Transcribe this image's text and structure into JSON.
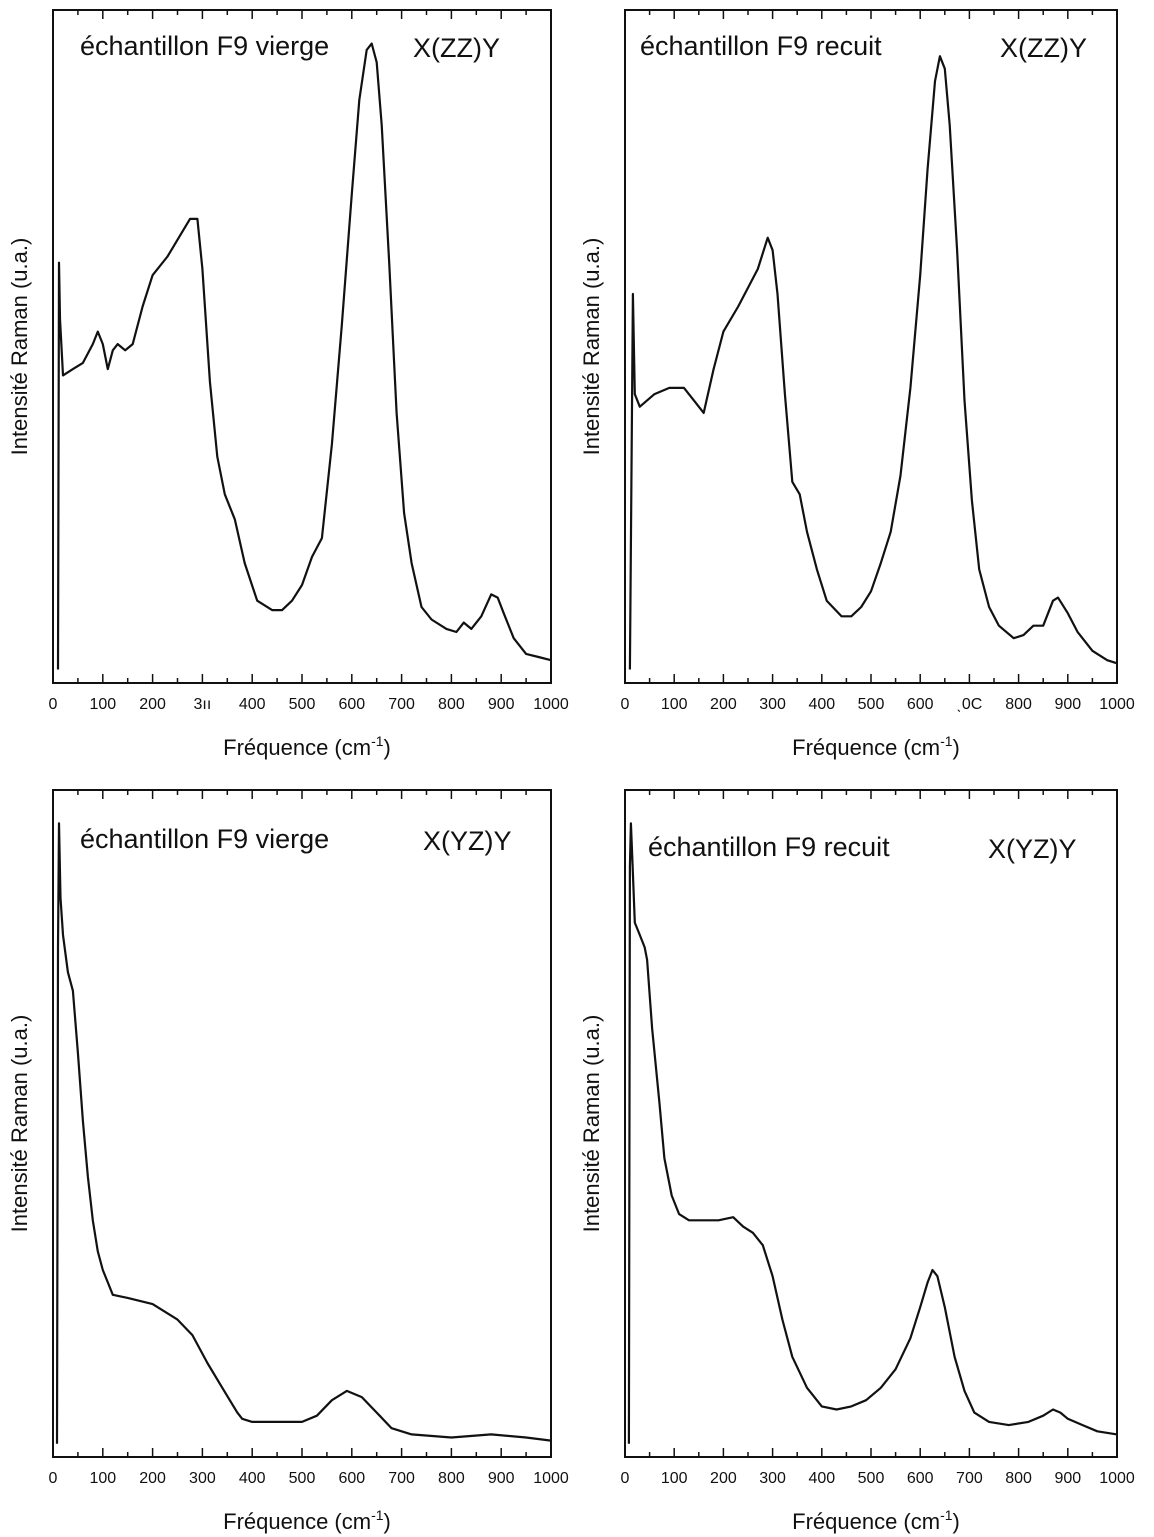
{
  "chart_data": [
    {
      "type": "line",
      "title": "échantillon F9 vierge",
      "polarization": "X(ZZ)Y",
      "xlabel": "Fréquence (cm",
      "xlabel_sup": "-1",
      "xlabel_close": ")",
      "ylabel": "Intensité Raman (u.a.)",
      "xlim": [
        0,
        1000
      ],
      "ylim": [
        0,
        1
      ],
      "x_tick_labels": [
        "0",
        "100",
        "200",
        "3ıı",
        "400",
        "500",
        "600",
        "700",
        "800",
        "900",
        "1000"
      ],
      "y_ticks_labeled": false,
      "grid": false,
      "series": [
        {
          "points": [
            [
              10,
              0.0
            ],
            [
              12,
              0.65
            ],
            [
              14,
              0.56
            ],
            [
              20,
              0.47
            ],
            [
              40,
              0.48
            ],
            [
              60,
              0.49
            ],
            [
              80,
              0.52
            ],
            [
              90,
              0.54
            ],
            [
              100,
              0.52
            ],
            [
              110,
              0.48
            ],
            [
              120,
              0.51
            ],
            [
              130,
              0.52
            ],
            [
              145,
              0.51
            ],
            [
              160,
              0.52
            ],
            [
              180,
              0.58
            ],
            [
              200,
              0.63
            ],
            [
              230,
              0.66
            ],
            [
              260,
              0.7
            ],
            [
              275,
              0.72
            ],
            [
              290,
              0.72
            ],
            [
              300,
              0.64
            ],
            [
              315,
              0.46
            ],
            [
              330,
              0.34
            ],
            [
              345,
              0.28
            ],
            [
              365,
              0.24
            ],
            [
              385,
              0.17
            ],
            [
              410,
              0.11
            ],
            [
              440,
              0.095
            ],
            [
              460,
              0.095
            ],
            [
              480,
              0.11
            ],
            [
              500,
              0.135
            ],
            [
              520,
              0.18
            ],
            [
              540,
              0.21
            ],
            [
              560,
              0.36
            ],
            [
              580,
              0.55
            ],
            [
              600,
              0.76
            ],
            [
              615,
              0.91
            ],
            [
              630,
              0.99
            ],
            [
              640,
              1.0
            ],
            [
              650,
              0.97
            ],
            [
              660,
              0.87
            ],
            [
              675,
              0.65
            ],
            [
              690,
              0.41
            ],
            [
              705,
              0.25
            ],
            [
              720,
              0.17
            ],
            [
              740,
              0.1
            ],
            [
              760,
              0.08
            ],
            [
              790,
              0.065
            ],
            [
              810,
              0.06
            ],
            [
              825,
              0.075
            ],
            [
              840,
              0.065
            ],
            [
              860,
              0.085
            ],
            [
              880,
              0.12
            ],
            [
              893,
              0.115
            ],
            [
              905,
              0.09
            ],
            [
              925,
              0.05
            ],
            [
              950,
              0.025
            ],
            [
              975,
              0.02
            ],
            [
              1000,
              0.015
            ]
          ]
        }
      ]
    },
    {
      "type": "line",
      "title": "échantillon F9 recuit",
      "polarization": "X(ZZ)Y",
      "xlabel": "Fréquence (cm",
      "xlabel_sup": "-1",
      "xlabel_close": ")",
      "ylabel": "Intensité Raman (u.a.)",
      "xlim": [
        0,
        1000
      ],
      "ylim": [
        0,
        1
      ],
      "x_tick_labels": [
        "0",
        "100",
        "200",
        "300",
        "400",
        "500",
        "600",
        "ˎ0С",
        "800",
        "900",
        "1000"
      ],
      "y_ticks_labeled": false,
      "grid": false,
      "series": [
        {
          "points": [
            [
              10,
              0.0
            ],
            [
              16,
              0.6
            ],
            [
              20,
              0.44
            ],
            [
              30,
              0.42
            ],
            [
              60,
              0.44
            ],
            [
              90,
              0.45
            ],
            [
              120,
              0.45
            ],
            [
              140,
              0.43
            ],
            [
              160,
              0.41
            ],
            [
              180,
              0.48
            ],
            [
              200,
              0.54
            ],
            [
              230,
              0.58
            ],
            [
              250,
              0.61
            ],
            [
              270,
              0.64
            ],
            [
              290,
              0.69
            ],
            [
              300,
              0.67
            ],
            [
              310,
              0.6
            ],
            [
              325,
              0.44
            ],
            [
              340,
              0.3
            ],
            [
              355,
              0.28
            ],
            [
              370,
              0.22
            ],
            [
              390,
              0.16
            ],
            [
              410,
              0.11
            ],
            [
              440,
              0.085
            ],
            [
              460,
              0.085
            ],
            [
              480,
              0.1
            ],
            [
              500,
              0.125
            ],
            [
              520,
              0.17
            ],
            [
              540,
              0.22
            ],
            [
              560,
              0.31
            ],
            [
              580,
              0.45
            ],
            [
              600,
              0.63
            ],
            [
              615,
              0.8
            ],
            [
              630,
              0.94
            ],
            [
              640,
              0.98
            ],
            [
              650,
              0.96
            ],
            [
              660,
              0.87
            ],
            [
              675,
              0.67
            ],
            [
              690,
              0.43
            ],
            [
              705,
              0.27
            ],
            [
              720,
              0.16
            ],
            [
              740,
              0.1
            ],
            [
              760,
              0.07
            ],
            [
              790,
              0.05
            ],
            [
              810,
              0.055
            ],
            [
              830,
              0.07
            ],
            [
              850,
              0.07
            ],
            [
              870,
              0.11
            ],
            [
              880,
              0.115
            ],
            [
              900,
              0.09
            ],
            [
              920,
              0.06
            ],
            [
              950,
              0.03
            ],
            [
              980,
              0.015
            ],
            [
              1000,
              0.01
            ]
          ]
        }
      ]
    },
    {
      "type": "line",
      "title": "échantillon F9 vierge",
      "polarization": "X(YZ)Y",
      "xlabel": "Fréquence (cm",
      "xlabel_sup": "-1",
      "xlabel_close": ")",
      "ylabel": "Intensité Raman (u.a.)",
      "xlim": [
        0,
        1000
      ],
      "ylim": [
        0,
        1
      ],
      "x_tick_labels": [
        "0",
        "100",
        "200",
        "300",
        "400",
        "500",
        "600",
        "700",
        "800",
        "900",
        "1000"
      ],
      "y_ticks_labeled": false,
      "grid": false,
      "series": [
        {
          "points": [
            [
              8,
              0.0
            ],
            [
              10,
              0.8
            ],
            [
              12,
              1.0
            ],
            [
              15,
              0.88
            ],
            [
              20,
              0.82
            ],
            [
              30,
              0.76
            ],
            [
              40,
              0.73
            ],
            [
              50,
              0.63
            ],
            [
              60,
              0.52
            ],
            [
              70,
              0.43
            ],
            [
              80,
              0.36
            ],
            [
              90,
              0.31
            ],
            [
              100,
              0.28
            ],
            [
              110,
              0.26
            ],
            [
              120,
              0.24
            ],
            [
              150,
              0.235
            ],
            [
              200,
              0.225
            ],
            [
              250,
              0.2
            ],
            [
              280,
              0.175
            ],
            [
              310,
              0.13
            ],
            [
              340,
              0.09
            ],
            [
              370,
              0.05
            ],
            [
              380,
              0.04
            ],
            [
              400,
              0.035
            ],
            [
              450,
              0.035
            ],
            [
              500,
              0.035
            ],
            [
              530,
              0.045
            ],
            [
              560,
              0.07
            ],
            [
              590,
              0.085
            ],
            [
              620,
              0.075
            ],
            [
              650,
              0.05
            ],
            [
              680,
              0.025
            ],
            [
              720,
              0.015
            ],
            [
              800,
              0.01
            ],
            [
              880,
              0.015
            ],
            [
              950,
              0.01
            ],
            [
              1000,
              0.005
            ]
          ]
        }
      ]
    },
    {
      "type": "line",
      "title": "échantillon F9 recuit",
      "polarization": "X(YZ)Y",
      "xlabel": "Fréquence (cm",
      "xlabel_sup": "-1",
      "xlabel_close": ")",
      "ylabel": "Intensité Raman (u.a.)",
      "xlim": [
        0,
        1000
      ],
      "ylim": [
        0,
        1
      ],
      "x_tick_labels": [
        "0",
        "100",
        "200",
        "300",
        "400",
        "500",
        "600",
        "700",
        "800",
        "900",
        "1000"
      ],
      "y_ticks_labeled": false,
      "grid": false,
      "series": [
        {
          "points": [
            [
              8,
              0.0
            ],
            [
              10,
              0.93
            ],
            [
              12,
              1.0
            ],
            [
              15,
              0.94
            ],
            [
              20,
              0.84
            ],
            [
              30,
              0.82
            ],
            [
              40,
              0.8
            ],
            [
              45,
              0.78
            ],
            [
              55,
              0.67
            ],
            [
              70,
              0.55
            ],
            [
              80,
              0.46
            ],
            [
              95,
              0.4
            ],
            [
              110,
              0.37
            ],
            [
              130,
              0.36
            ],
            [
              160,
              0.36
            ],
            [
              190,
              0.36
            ],
            [
              220,
              0.365
            ],
            [
              240,
              0.35
            ],
            [
              260,
              0.34
            ],
            [
              280,
              0.32
            ],
            [
              300,
              0.27
            ],
            [
              320,
              0.2
            ],
            [
              340,
              0.14
            ],
            [
              370,
              0.09
            ],
            [
              400,
              0.06
            ],
            [
              430,
              0.055
            ],
            [
              460,
              0.06
            ],
            [
              490,
              0.07
            ],
            [
              520,
              0.09
            ],
            [
              550,
              0.12
            ],
            [
              580,
              0.17
            ],
            [
              600,
              0.22
            ],
            [
              615,
              0.26
            ],
            [
              625,
              0.28
            ],
            [
              635,
              0.27
            ],
            [
              650,
              0.22
            ],
            [
              670,
              0.14
            ],
            [
              690,
              0.085
            ],
            [
              710,
              0.05
            ],
            [
              740,
              0.035
            ],
            [
              780,
              0.03
            ],
            [
              820,
              0.035
            ],
            [
              850,
              0.045
            ],
            [
              870,
              0.055
            ],
            [
              885,
              0.05
            ],
            [
              900,
              0.04
            ],
            [
              930,
              0.03
            ],
            [
              960,
              0.02
            ],
            [
              1000,
              0.015
            ]
          ]
        }
      ]
    }
  ]
}
